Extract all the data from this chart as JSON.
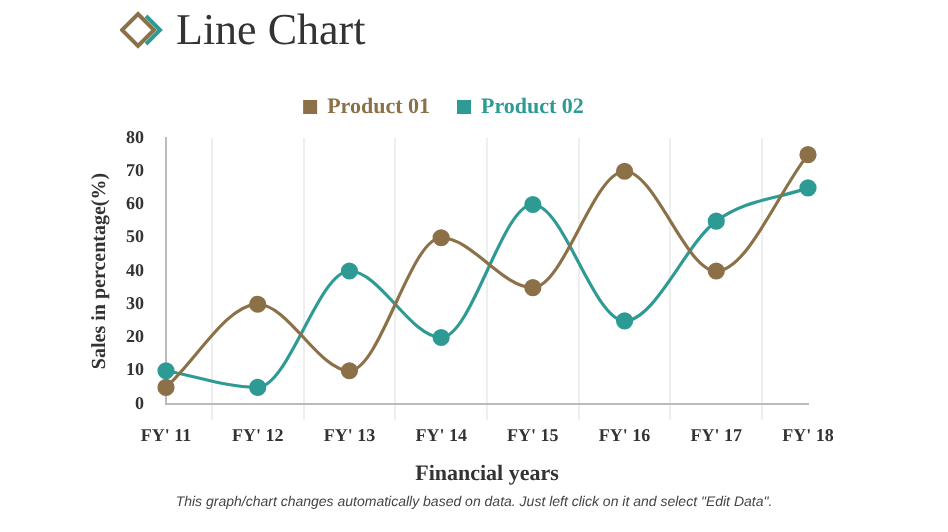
{
  "chart_data": {
    "type": "line",
    "title": "Line Chart",
    "xlabel": "Financial years",
    "ylabel": "Sales in percentage(%)",
    "categories": [
      "FY' 11",
      "FY' 12",
      "FY' 13",
      "FY' 14",
      "FY' 15",
      "FY' 16",
      "FY' 17",
      "FY' 18"
    ],
    "series": [
      {
        "name": "Product 01",
        "color": "#8b7048",
        "values": [
          5,
          30,
          10,
          50,
          35,
          70,
          40,
          75
        ]
      },
      {
        "name": "Product 02",
        "color": "#2e9a94",
        "values": [
          10,
          5,
          40,
          20,
          60,
          25,
          55,
          65
        ]
      }
    ],
    "ylim": [
      0,
      80
    ],
    "yticks": [
      0,
      10,
      20,
      30,
      40,
      50,
      60,
      70,
      80
    ],
    "grid": "x",
    "legend": "top",
    "marker": "circle",
    "annotations": [
      "This graph/chart changes automatically based on data. Just left click on it and select \"Edit Data\"."
    ]
  }
}
